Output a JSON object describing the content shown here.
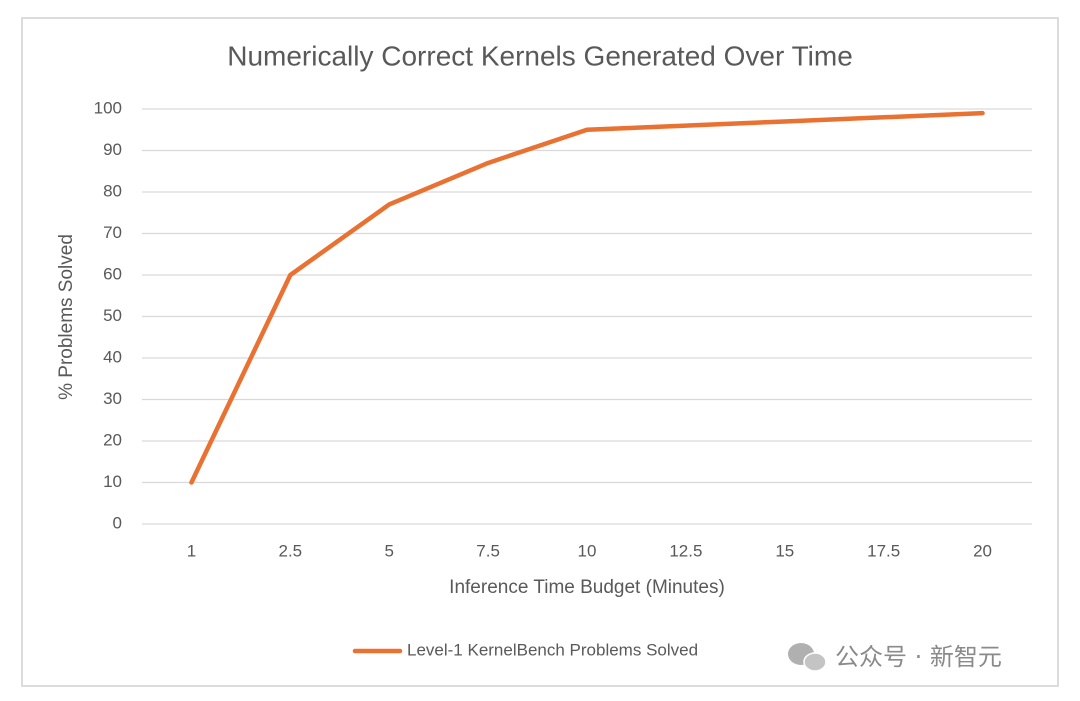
{
  "chart_data": {
    "type": "line",
    "title": "Numerically Correct Kernels Generated Over Time",
    "x_label": "Inference Time Budget (Minutes)",
    "y_label": "% Problems Solved",
    "categories": [
      "1",
      "2.5",
      "5",
      "7.5",
      "10",
      "12.5",
      "15",
      "17.5",
      "20"
    ],
    "series": [
      {
        "name": "Level-1 KernelBench Problems Solved",
        "color": "#e97132",
        "values": [
          10,
          60,
          77,
          87,
          95,
          96,
          97,
          98,
          99
        ]
      }
    ],
    "ylim": [
      0,
      100
    ],
    "yticks": [
      0,
      10,
      20,
      30,
      40,
      50,
      60,
      70,
      80,
      90,
      100
    ],
    "grid": true,
    "legend": "bottom",
    "watermark": "公众号 · 新智元"
  }
}
